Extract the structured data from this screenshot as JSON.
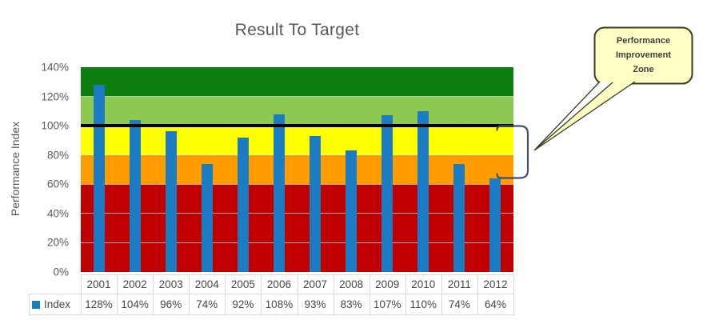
{
  "chart_data": {
    "type": "bar",
    "title": "Result To Target",
    "ylabel": "Performance Index",
    "categories": [
      "2001",
      "2002",
      "2003",
      "2004",
      "2005",
      "2006",
      "2007",
      "2008",
      "2009",
      "2010",
      "2011",
      "2012"
    ],
    "series": [
      {
        "name": "Index",
        "values": [
          128,
          104,
          96,
          74,
          92,
          108,
          93,
          83,
          107,
          110,
          74,
          64
        ]
      }
    ],
    "value_labels": [
      "128%",
      "104%",
      "96%",
      "74%",
      "92%",
      "108%",
      "93%",
      "83%",
      "107%",
      "110%",
      "74%",
      "64%"
    ],
    "ylim": [
      0,
      140
    ],
    "yticks": [
      {
        "value": 0,
        "label": "0%"
      },
      {
        "value": 20,
        "label": "20%"
      },
      {
        "value": 40,
        "label": "40%"
      },
      {
        "value": 60,
        "label": "60%"
      },
      {
        "value": 80,
        "label": "80%"
      },
      {
        "value": 100,
        "label": "100%"
      },
      {
        "value": 120,
        "label": "120%"
      },
      {
        "value": 140,
        "label": "140%"
      }
    ],
    "gridlines": [
      20,
      40,
      60,
      80,
      120
    ],
    "grid": true,
    "legend_label": "Index",
    "legend_position": "table-left",
    "bar_color": "#1B7CC4",
    "bands": [
      {
        "from": 120,
        "to": 140,
        "color": "#0E7E0E"
      },
      {
        "from": 100,
        "to": 120,
        "color": "#8DC951"
      },
      {
        "from": 80,
        "to": 100,
        "color": "#FFFF00"
      },
      {
        "from": 60,
        "to": 80,
        "color": "#FF9C00"
      },
      {
        "from": 0,
        "to": 60,
        "color": "#C00000"
      }
    ],
    "target_line": {
      "value": 100,
      "color": "#000000"
    }
  },
  "annotations": {
    "callout": {
      "lines": [
        "Performance",
        "Improvement",
        "Zone"
      ],
      "fill": "#FFFFC6",
      "border": "#3B3B1F",
      "text_color": "#3F3F3F"
    },
    "bracket": {
      "color": "#44506A"
    }
  },
  "colors": {
    "axis_text": "#595959",
    "table_text": "#474747",
    "table_border": "#D9D9D9",
    "background": "#FFFFFF"
  }
}
